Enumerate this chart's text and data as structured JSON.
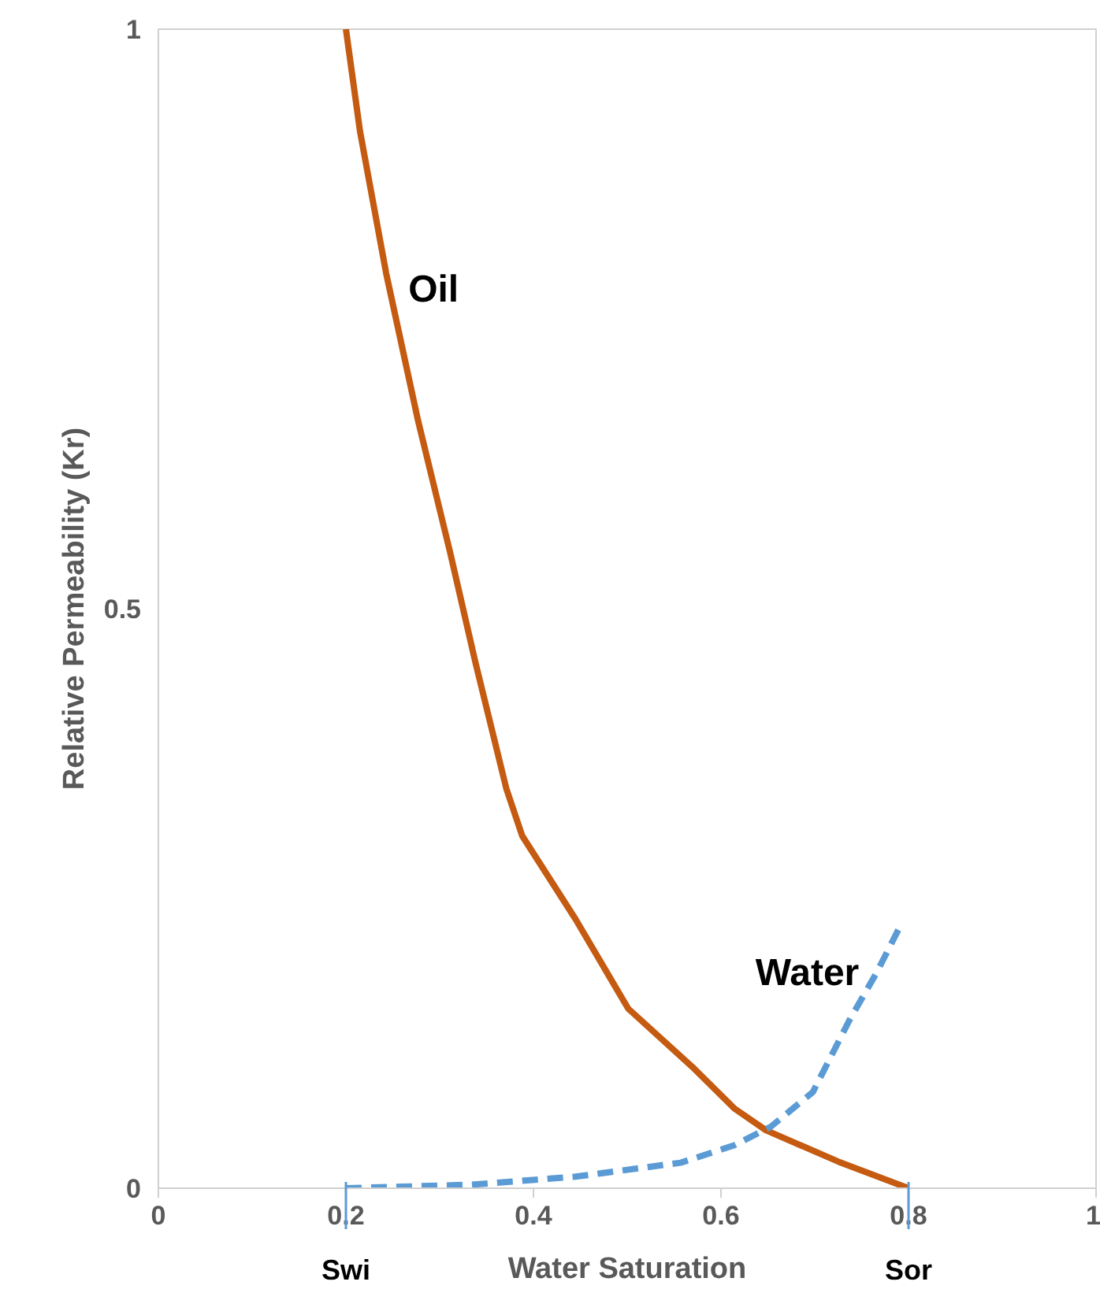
{
  "chart_data": {
    "type": "line",
    "xlabel": "Water Saturation",
    "ylabel": "Relative Permeability (Kr)",
    "xlim": [
      0,
      1
    ],
    "ylim": [
      0,
      1
    ],
    "xticks": [
      0,
      0.2,
      0.4,
      0.6,
      0.8,
      1
    ],
    "yticks": [
      0,
      0.5,
      1
    ],
    "grid": false,
    "legend": false,
    "marker": "none",
    "series": [
      {
        "name": "Oil",
        "color": "#c55a11",
        "line_style": "solid",
        "x": [
          0.2,
          0.215,
          0.243,
          0.277,
          0.311,
          0.338,
          0.371,
          0.388,
          0.445,
          0.501,
          0.569,
          0.614,
          0.648,
          0.725,
          0.8
        ],
        "values": [
          1.0,
          0.912,
          0.789,
          0.662,
          0.549,
          0.454,
          0.345,
          0.304,
          0.232,
          0.155,
          0.105,
          0.069,
          0.05,
          0.023,
          0
        ]
      },
      {
        "name": "Water",
        "color": "#5b9bd5",
        "line_style": "dashed",
        "x": [
          0.2,
          0.333,
          0.445,
          0.557,
          0.614,
          0.653,
          0.698,
          0.737,
          0.766,
          0.791
        ],
        "values": [
          0,
          0.003,
          0.01,
          0.022,
          0.037,
          0.053,
          0.083,
          0.145,
          0.186,
          0.226
        ]
      }
    ],
    "annotations": [
      {
        "text": "Swi",
        "x": 0.2
      },
      {
        "text": "Sor",
        "x": 0.8
      }
    ]
  }
}
